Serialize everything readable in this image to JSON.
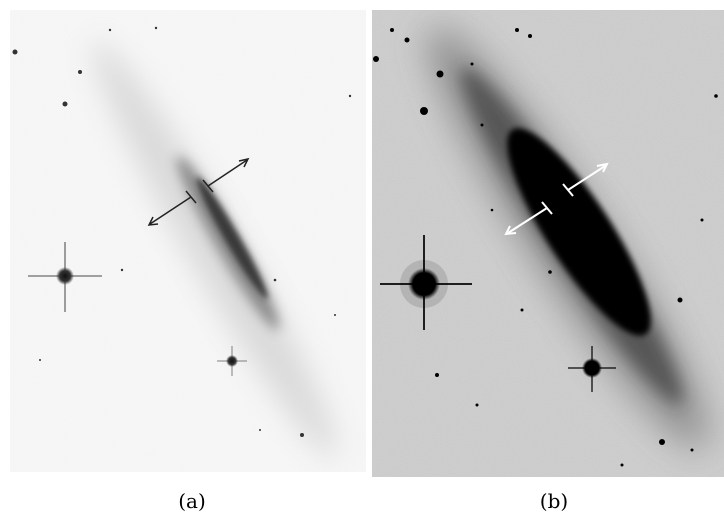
{
  "figure": {
    "panels": [
      {
        "caption": "(a)",
        "stretch": "linear",
        "background": "#f8f8f8",
        "foreground": "#1a1a1a",
        "marker_color": "#222222"
      },
      {
        "caption": "(b)",
        "stretch": "high-contrast",
        "background": "#cfcfcf",
        "foreground": "#000000",
        "marker_color": "#ffffff"
      }
    ]
  }
}
